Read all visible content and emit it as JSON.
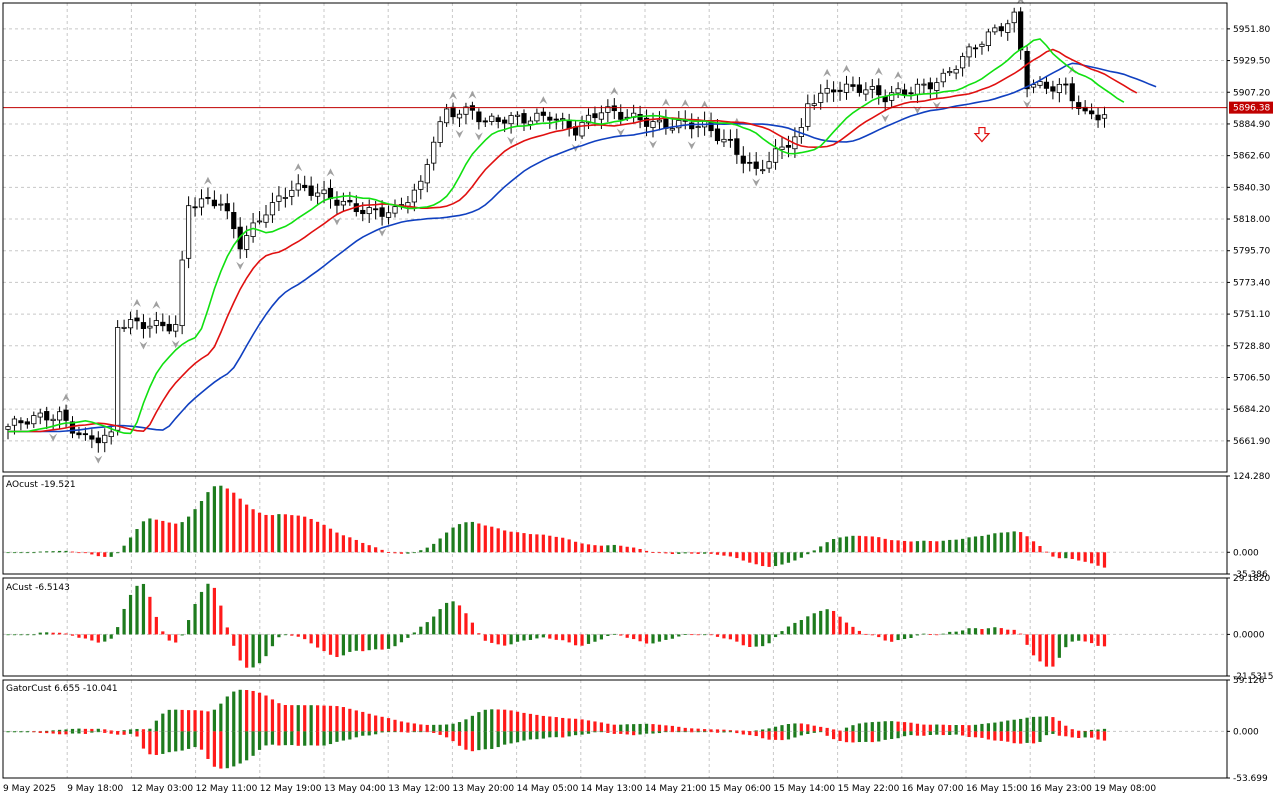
{
  "colors": {
    "bull_candle": "#ffffff",
    "bear_candle": "#000000",
    "alligator_jaw": "#1040c0",
    "alligator_teeth": "#e01010",
    "alligator_lips": "#10e010",
    "histogram_up": "#1e7b1e",
    "histogram_down": "#ff1a1a",
    "price_line": "#c00000",
    "fractal": "#a0a0a0",
    "grid": "#c8c8c8"
  },
  "chart_data": [
    {
      "type": "candlestick",
      "name": "price",
      "current_price_label": "5896.38",
      "y_ticks": [
        "5951.80",
        "5929.50",
        "5907.20",
        "5884.90",
        "5862.60",
        "5840.30",
        "5818.00",
        "5795.70",
        "5773.40",
        "5751.10",
        "5728.80",
        "5706.50",
        "5684.20",
        "5661.90"
      ],
      "ylim": [
        5640,
        5970
      ],
      "grid": true,
      "sell_arrow": {
        "index": 151,
        "price": 5888
      }
    },
    {
      "type": "bar",
      "name": "ao",
      "title": "AOcust -19.521",
      "y_ticks": [
        "124.280",
        "0.000",
        "-35.386"
      ],
      "ylim": [
        -35.386,
        124.28
      ],
      "grid": true
    },
    {
      "type": "bar",
      "name": "ac",
      "title": "ACust -6.5143",
      "y_ticks": [
        "29.1820",
        "0.0000",
        "-21.5315"
      ],
      "ylim": [
        -21.5315,
        29.182
      ],
      "grid": true
    },
    {
      "type": "bar",
      "name": "gator",
      "title": "GatorCust 6.655 -10.041",
      "y_ticks": [
        "59.126",
        "0.000",
        "-53.699"
      ],
      "ylim": [
        -53.699,
        59.126
      ],
      "grid": true
    }
  ],
  "x_ticks": [
    "9 May 2025",
    "9 May 18:00",
    "12 May 03:00",
    "12 May 11:00",
    "12 May 19:00",
    "13 May 04:00",
    "13 May 12:00",
    "13 May 20:00",
    "14 May 05:00",
    "14 May 13:00",
    "14 May 21:00",
    "15 May 06:00",
    "15 May 14:00",
    "15 May 22:00",
    "16 May 07:00",
    "16 May 15:00",
    "16 May 23:00",
    "19 May 08:00"
  ]
}
